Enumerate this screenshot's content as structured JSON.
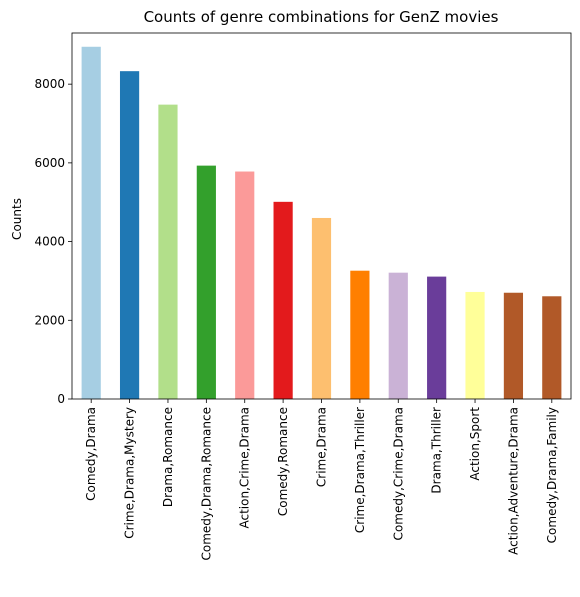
{
  "chart_data": {
    "type": "bar",
    "title": "Counts of genre combinations for GenZ movies",
    "xlabel": "",
    "ylabel": "Counts",
    "ylim": [
      0,
      9300
    ],
    "yticks": [
      0,
      2000,
      4000,
      6000,
      8000
    ],
    "grid": false,
    "categories": [
      "Comedy,Drama",
      "Crime,Drama,Mystery",
      "Drama,Romance",
      "Comedy,Drama,Romance",
      "Action,Crime,Drama",
      "Comedy,Romance",
      "Crime,Drama",
      "Crime,Drama,Thriller",
      "Comedy,Crime,Drama",
      "Drama,Thriller",
      "Action,Sport",
      "Action,Adventure,Drama",
      "Comedy,Drama,Family"
    ],
    "values": [
      8950,
      8330,
      7480,
      5930,
      5780,
      5010,
      4600,
      3260,
      3210,
      3110,
      2720,
      2700,
      2610
    ],
    "colors": [
      "#a6cee3",
      "#1f78b4",
      "#b2df8a",
      "#33a02c",
      "#fb9a99",
      "#e31a1c",
      "#fdbf6f",
      "#ff7f00",
      "#cab2d6",
      "#6a3d9a",
      "#ffff99",
      "#b15928",
      "#b15928"
    ]
  }
}
